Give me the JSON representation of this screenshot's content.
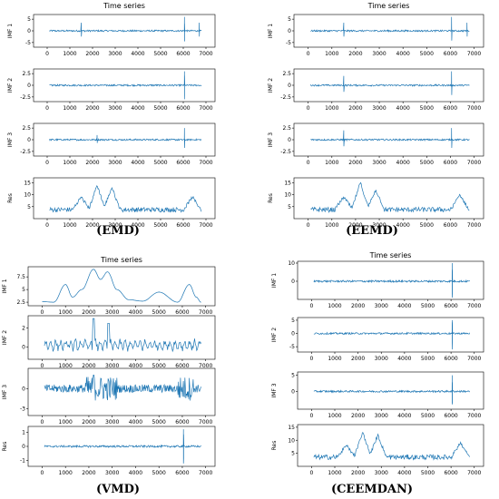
{
  "panels": [
    {
      "id": "emd",
      "caption": "(EMD)",
      "title": "Time series",
      "x_ticks": [
        "0",
        "1000",
        "2000",
        "3000",
        "4000",
        "5000",
        "6000",
        "7000"
      ],
      "series_color": "#1f77b4",
      "subplots": [
        {
          "ylabel": "IMF 1",
          "y_ticks": [
            -5,
            0,
            5
          ],
          "ylim": [
            -7,
            7
          ],
          "kind": "oscillation"
        },
        {
          "ylabel": "IMF 2",
          "y_ticks": [
            -2.5,
            0.0,
            2.5
          ],
          "ylim": [
            -3.5,
            3.5
          ],
          "kind": "oscillation"
        },
        {
          "ylabel": "IMF 3",
          "y_ticks": [
            -2.5,
            0.0,
            2.5
          ],
          "ylim": [
            -3.5,
            3.5
          ],
          "kind": "oscillation"
        },
        {
          "ylabel": "Res",
          "y_ticks": [
            5,
            10,
            15
          ],
          "ylim": [
            0,
            17
          ],
          "kind": "trend"
        }
      ]
    },
    {
      "id": "eemd",
      "caption": "(EEMD)",
      "title": "Time series",
      "x_ticks": [
        "0",
        "1000",
        "2000",
        "3000",
        "4000",
        "5000",
        "6000",
        "7000"
      ],
      "series_color": "#1f77b4",
      "subplots": [
        {
          "ylabel": "IMF 1",
          "y_ticks": [
            -5,
            0,
            5
          ],
          "ylim": [
            -7,
            7
          ],
          "kind": "oscillation"
        },
        {
          "ylabel": "IMF 2",
          "y_ticks": [
            -2.5,
            0.0,
            2.5
          ],
          "ylim": [
            -3.5,
            3.5
          ],
          "kind": "oscillation"
        },
        {
          "ylabel": "IMF 3",
          "y_ticks": [
            -2.5,
            0.0,
            2.5
          ],
          "ylim": [
            -3.5,
            3.5
          ],
          "kind": "oscillation"
        },
        {
          "ylabel": "Res",
          "y_ticks": [
            5,
            10,
            15
          ],
          "ylim": [
            0,
            17
          ],
          "kind": "trend"
        }
      ]
    },
    {
      "id": "vmd",
      "caption": "(VMD)",
      "title": "Time series",
      "x_ticks": [
        "0",
        "1000",
        "2000",
        "3000",
        "4000",
        "5000",
        "6000",
        "7000"
      ],
      "series_color": "#1f77b4",
      "subplots": [
        {
          "ylabel": "IMF 1",
          "y_ticks": [
            2.5,
            5.0,
            7.5
          ],
          "ylim": [
            1.8,
            9.5
          ],
          "kind": "smooth"
        },
        {
          "ylabel": "IMF 2",
          "y_ticks": [
            0,
            2
          ],
          "ylim": [
            -1.3,
            3.3
          ],
          "kind": "wiggle"
        },
        {
          "ylabel": "IMF 3",
          "y_ticks": [
            -3,
            0
          ],
          "ylim": [
            -4,
            3
          ],
          "kind": "noise"
        },
        {
          "ylabel": "Res",
          "y_ticks": [
            -1,
            0,
            1
          ],
          "ylim": [
            -1.4,
            1.4
          ],
          "kind": "oscillation"
        }
      ]
    },
    {
      "id": "ceemdan",
      "caption": "(CEEMDAN)",
      "title": "Time series",
      "x_ticks": [
        "0",
        "1000",
        "2000",
        "3000",
        "4000",
        "5000",
        "6000",
        "7000"
      ],
      "series_color": "#1f77b4",
      "subplots": [
        {
          "ylabel": "IMF 1",
          "y_ticks": [
            0,
            10
          ],
          "ylim": [
            -10,
            11
          ],
          "kind": "oscillation"
        },
        {
          "ylabel": "IMF 2",
          "y_ticks": [
            -5,
            0,
            5
          ],
          "ylim": [
            -7,
            6
          ],
          "kind": "oscillation"
        },
        {
          "ylabel": "IMF 3",
          "y_ticks": [
            0,
            5
          ],
          "ylim": [
            -5.5,
            6
          ],
          "kind": "oscillation"
        },
        {
          "ylabel": "Res",
          "y_ticks": [
            5,
            10,
            15
          ],
          "ylim": [
            0,
            16
          ],
          "kind": "trend"
        }
      ]
    }
  ],
  "chart_data": [
    {
      "type": "line",
      "title": "Time series",
      "caption": "(EMD)",
      "xlim": [
        0,
        7000
      ],
      "series": [
        {
          "name": "IMF 1",
          "x_range": [
            0,
            6800
          ],
          "spikes": [
            {
              "x": 1500,
              "y": 3.5
            },
            {
              "x": 6050,
              "y": 6
            },
            {
              "x": 6050,
              "y": -4.5
            },
            {
              "x": 6700,
              "y": 3.5
            }
          ]
        },
        {
          "name": "IMF 2",
          "x_range": [
            0,
            6800
          ],
          "spikes": [
            {
              "x": 6050,
              "y": 3
            },
            {
              "x": 6050,
              "y": -3
            }
          ]
        },
        {
          "name": "IMF 3",
          "x_range": [
            0,
            6800
          ],
          "spikes": [
            {
              "x": 2200,
              "y": 1
            },
            {
              "x": 6050,
              "y": 2.5
            }
          ]
        },
        {
          "name": "Res",
          "x_range": [
            0,
            6800
          ],
          "peaks": [
            {
              "x": 1500,
              "y": 9
            },
            {
              "x": 2200,
              "y": 14
            },
            {
              "x": 2850,
              "y": 13
            },
            {
              "x": 6400,
              "y": 9
            }
          ]
        }
      ]
    },
    {
      "type": "line",
      "title": "Time series",
      "caption": "(EEMD)",
      "xlim": [
        0,
        7000
      ],
      "series": [
        {
          "name": "IMF 1",
          "x_range": [
            0,
            6800
          ],
          "spikes": [
            {
              "x": 1500,
              "y": 3.5
            },
            {
              "x": 6050,
              "y": 6
            },
            {
              "x": 6700,
              "y": 3.5
            }
          ]
        },
        {
          "name": "IMF 2",
          "x_range": [
            0,
            6800
          ],
          "spikes": [
            {
              "x": 1500,
              "y": 2
            },
            {
              "x": 6050,
              "y": 3
            }
          ]
        },
        {
          "name": "IMF 3",
          "x_range": [
            0,
            6800
          ],
          "spikes": [
            {
              "x": 1500,
              "y": 2
            },
            {
              "x": 6050,
              "y": 2.5
            }
          ]
        },
        {
          "name": "Res",
          "x_range": [
            0,
            6800
          ],
          "peaks": [
            {
              "x": 1500,
              "y": 9
            },
            {
              "x": 2200,
              "y": 15
            },
            {
              "x": 2850,
              "y": 12
            },
            {
              "x": 6400,
              "y": 10
            }
          ]
        }
      ]
    },
    {
      "type": "line",
      "title": "Time series",
      "caption": "(VMD)",
      "xlim": [
        0,
        7000
      ],
      "series": [
        {
          "name": "IMF 1",
          "x_range": [
            0,
            6800
          ],
          "points": [
            [
              0,
              2.6
            ],
            [
              500,
              2.5
            ],
            [
              1000,
              6
            ],
            [
              1300,
              3.5
            ],
            [
              1700,
              5
            ],
            [
              2200,
              9
            ],
            [
              2500,
              7
            ],
            [
              2800,
              8.5
            ],
            [
              3200,
              5
            ],
            [
              3700,
              3
            ],
            [
              4300,
              2.7
            ],
            [
              5000,
              4.5
            ],
            [
              5800,
              2.5
            ],
            [
              6300,
              6
            ],
            [
              6600,
              3.5
            ],
            [
              6800,
              2.5
            ]
          ]
        },
        {
          "name": "IMF 2",
          "x_range": [
            0,
            6800
          ],
          "spikes": [
            {
              "x": 2200,
              "y": 3
            },
            {
              "x": 2850,
              "y": 2.5
            }
          ]
        },
        {
          "name": "IMF 3",
          "x_range": [
            0,
            6800
          ],
          "spikes": [
            {
              "x": 2200,
              "y": -3.5
            },
            {
              "x": 2200,
              "y": 2
            }
          ]
        },
        {
          "name": "Res",
          "x_range": [
            0,
            6800
          ],
          "spikes": [
            {
              "x": 6050,
              "y": 1.2
            },
            {
              "x": 6050,
              "y": -1.2
            }
          ]
        }
      ]
    },
    {
      "type": "line",
      "title": "Time series",
      "caption": "(CEEMDAN)",
      "xlim": [
        0,
        7000
      ],
      "series": [
        {
          "name": "IMF 1",
          "x_range": [
            0,
            6800
          ],
          "spikes": [
            {
              "x": 6050,
              "y": 10
            },
            {
              "x": 6050,
              "y": -9
            }
          ]
        },
        {
          "name": "IMF 2",
          "x_range": [
            0,
            6800
          ],
          "spikes": [
            {
              "x": 6050,
              "y": 5
            },
            {
              "x": 6050,
              "y": -6
            }
          ]
        },
        {
          "name": "IMF 3",
          "x_range": [
            0,
            6800
          ],
          "spikes": [
            {
              "x": 6050,
              "y": 5
            },
            {
              "x": 6050,
              "y": -4
            }
          ]
        },
        {
          "name": "Res",
          "x_range": [
            0,
            6800
          ],
          "peaks": [
            {
              "x": 1500,
              "y": 8
            },
            {
              "x": 2200,
              "y": 13
            },
            {
              "x": 2850,
              "y": 12
            },
            {
              "x": 6400,
              "y": 9
            }
          ]
        }
      ]
    }
  ]
}
